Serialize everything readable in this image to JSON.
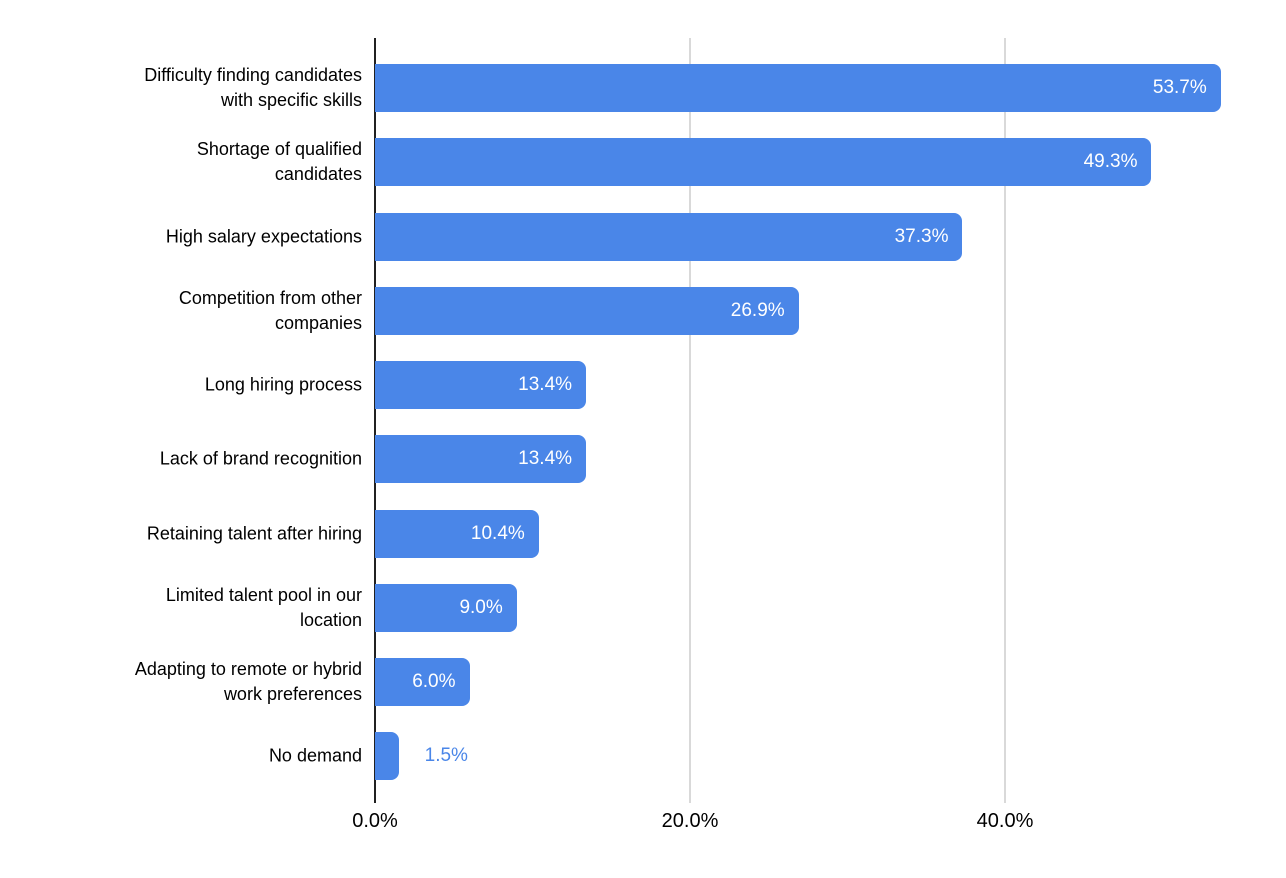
{
  "chart_data": {
    "type": "bar",
    "orientation": "horizontal",
    "title": "",
    "xlabel": "",
    "ylabel": "",
    "categories": [
      "Difficulty finding candidates\nwith specific skills",
      "Shortage of qualified\ncandidates",
      "High salary expectations",
      "Competition from other\ncompanies",
      "Long hiring process",
      "Lack of brand recognition",
      "Retaining talent after hiring",
      "Limited talent pool in our\nlocation",
      "Adapting to remote or hybrid\nwork preferences",
      "No demand"
    ],
    "values": [
      53.7,
      49.3,
      37.3,
      26.9,
      13.4,
      13.4,
      10.4,
      9.0,
      6.0,
      1.5
    ],
    "value_labels": [
      "53.7%",
      "49.3%",
      "37.3%",
      "26.9%",
      "13.4%",
      "13.4%",
      "10.4%",
      "9.0%",
      "6.0%",
      "1.5%"
    ],
    "x_ticks": [
      {
        "label": "0.0%",
        "value": 0
      },
      {
        "label": "20.0%",
        "value": 20
      },
      {
        "label": "40.0%",
        "value": 40
      }
    ],
    "xlim": [
      0,
      57.7
    ],
    "grid": "vertical-only",
    "legend": "none",
    "colors": {
      "bar": "#4a86e8",
      "value_label_inside": "#ffffff",
      "value_label_outside": "#4a86e8",
      "category_text": "#000000",
      "tick_text": "#000000",
      "axis_line": "#212121",
      "gridline": "#d9d9d9",
      "background": "#ffffff"
    }
  }
}
